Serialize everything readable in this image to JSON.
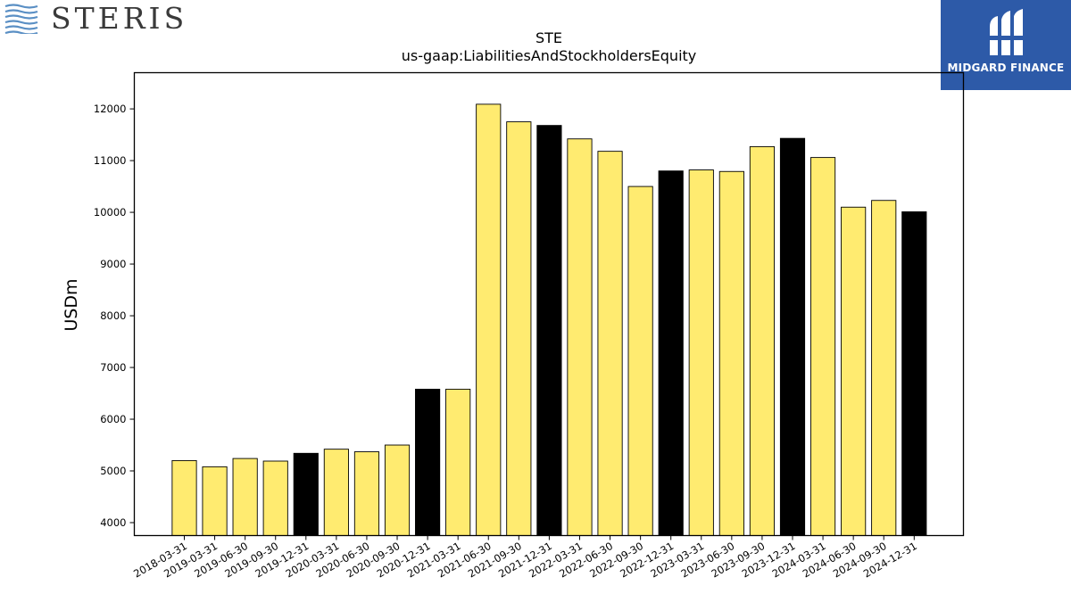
{
  "branding": {
    "company_logo_text": "STERIS",
    "partner_logo_text": "MIDGARD FINANCE",
    "partner_logo_color": "#2d5aa8"
  },
  "chart_data": {
    "type": "bar",
    "title": "STE",
    "subtitle": "us-gaap:LiabilitiesAndStockholdersEquity",
    "ylabel": "USDm",
    "xlabel": "",
    "ylim": [
      3750,
      12700
    ],
    "yticks": [
      4000,
      5000,
      6000,
      7000,
      8000,
      9000,
      10000,
      11000,
      12000
    ],
    "grid": false,
    "colors": {
      "quarter": "#ffeb70",
      "year_end": "#000000",
      "edge": "#000000"
    },
    "categories": [
      "2018-03-31",
      "2019-03-31",
      "2019-06-30",
      "2019-09-30",
      "2019-12-31",
      "2020-03-31",
      "2020-06-30",
      "2020-09-30",
      "2020-12-31",
      "2021-03-31",
      "2021-06-30",
      "2021-09-30",
      "2021-12-31",
      "2022-03-31",
      "2022-06-30",
      "2022-09-30",
      "2022-12-31",
      "2023-03-31",
      "2023-06-30",
      "2023-09-30",
      "2023-12-31",
      "2024-03-31",
      "2024-06-30",
      "2024-09-30",
      "2024-12-31"
    ],
    "values": [
      5200,
      5080,
      5240,
      5190,
      5340,
      5420,
      5370,
      5500,
      6580,
      6580,
      12090,
      11750,
      11680,
      11420,
      11180,
      10500,
      10800,
      10820,
      10790,
      11270,
      11430,
      11060,
      10100,
      10230,
      10010
    ],
    "highlight": [
      false,
      false,
      false,
      false,
      true,
      false,
      false,
      false,
      true,
      false,
      false,
      false,
      true,
      false,
      false,
      false,
      true,
      false,
      false,
      false,
      true,
      false,
      false,
      false,
      true
    ]
  }
}
